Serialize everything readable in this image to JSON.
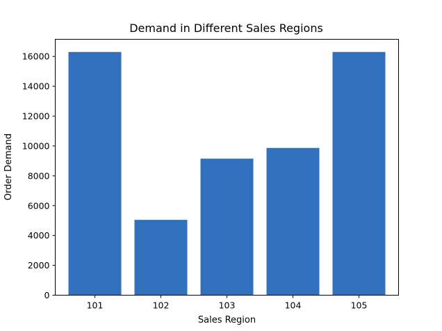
{
  "chart_data": {
    "type": "bar",
    "title": "Demand in Different Sales Regions",
    "xlabel": "Sales Region",
    "ylabel": "Order Demand",
    "categories": [
      "101",
      "102",
      "103",
      "104",
      "105"
    ],
    "values": [
      16300,
      5050,
      9150,
      9870,
      16300
    ],
    "ylim": [
      0,
      17150
    ],
    "yticks": [
      0,
      2000,
      4000,
      6000,
      8000,
      10000,
      12000,
      14000,
      16000
    ],
    "bar_color": "#3070bd",
    "grid": false,
    "legend": "none"
  }
}
